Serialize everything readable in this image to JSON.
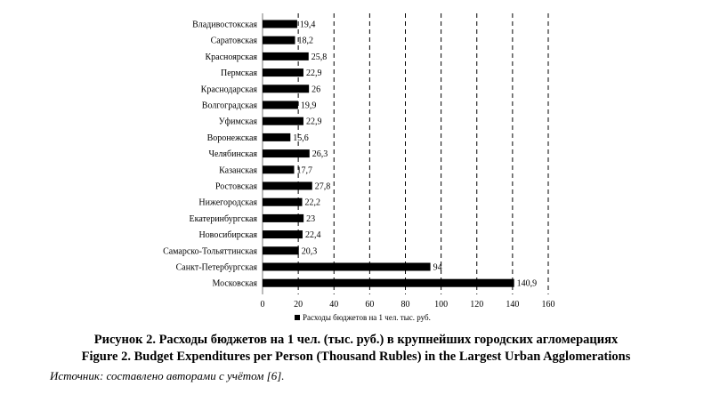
{
  "chart_data": {
    "type": "bar",
    "orientation": "horizontal",
    "categories": [
      "Владивостокская",
      "Саратовская",
      "Красноярская",
      "Пермская",
      "Краснодарская",
      "Волгоградская",
      "Уфимская",
      "Воронежская",
      "Челябинская",
      "Казанская",
      "Ростовская",
      "Нижегородская",
      "Екатеринбургская",
      "Новосибирская",
      "Самарско-Тольяттинская",
      "Санкт-Петербургская",
      "Московская"
    ],
    "value_labels": [
      "19,4",
      "18,2",
      "25,8",
      "22,9",
      "26",
      "19,9",
      "22,9",
      "15,6",
      "26,3",
      "17,7",
      "27,8",
      "22,2",
      "23",
      "22,4",
      "20,3",
      "94",
      "140,9"
    ],
    "series": [
      {
        "name": "Расходы бюджетов на 1 чел. тыс. руб.",
        "values": [
          19.4,
          18.2,
          25.8,
          22.9,
          26,
          19.9,
          22.9,
          15.6,
          26.3,
          17.7,
          27.8,
          22.2,
          23,
          22.4,
          20.3,
          94,
          140.9
        ]
      }
    ],
    "xlim": [
      0,
      160
    ],
    "xticks": [
      0,
      20,
      40,
      60,
      80,
      100,
      120,
      140,
      160
    ],
    "grid": "vertical-dashed",
    "legend": "bottom",
    "bar_color": "#000000"
  },
  "caption_ru": "Рисунок 2. Расходы бюджетов на 1 чел. (тыс. руб.) в крупнейших городских агломерациях",
  "caption_en": "Figure 2. Budget Expenditures per Person (Thousand Rubles) in the Largest Urban Agglomerations",
  "source": "Источник: составлено авторами с учётом [6]."
}
